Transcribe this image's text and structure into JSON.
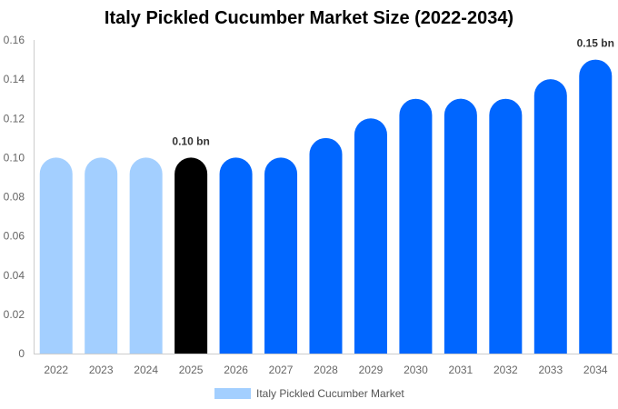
{
  "chart_data": {
    "type": "bar",
    "title": "Italy Pickled Cucumber Market Size (2022-2034)",
    "categories": [
      "2022",
      "2023",
      "2024",
      "2025",
      "2026",
      "2027",
      "2028",
      "2029",
      "2030",
      "2031",
      "2032",
      "2033",
      "2034"
    ],
    "series": [
      {
        "name": "Italy Pickled Cucumber Market",
        "values": [
          0.1,
          0.1,
          0.1,
          0.1,
          0.1,
          0.1,
          0.11,
          0.12,
          0.13,
          0.13,
          0.13,
          0.14,
          0.15
        ]
      }
    ],
    "data_labels": {
      "3": "0.10 bn",
      "12": "0.15 bn"
    },
    "yticks": [
      "0",
      "0.02",
      "0.04",
      "0.06",
      "0.08",
      "0.10",
      "0.12",
      "0.14",
      "0.16"
    ],
    "ylim": [
      0,
      0.16
    ],
    "bar_colors": [
      "#a3cfff",
      "#a3cfff",
      "#a3cfff",
      "#000000",
      "#0066ff",
      "#0066ff",
      "#0066ff",
      "#0066ff",
      "#0066ff",
      "#0066ff",
      "#0066ff",
      "#0066ff",
      "#0066ff"
    ],
    "legend_color": "#a3cfff",
    "legend_position": "bottom",
    "grid": false
  }
}
